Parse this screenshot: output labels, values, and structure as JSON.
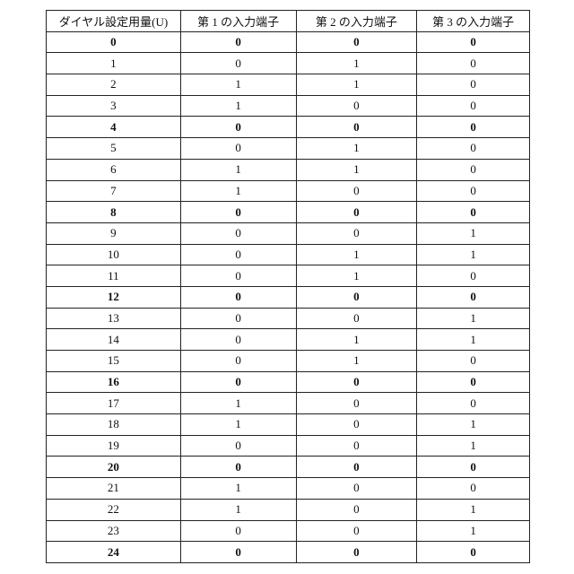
{
  "table": {
    "headers": [
      "ダイヤル設定用量(U)",
      "第 1 の入力端子",
      "第 2 の入力端子",
      "第 3 の入力端子"
    ],
    "rows": [
      {
        "cells": [
          "0",
          "0",
          "0",
          "0"
        ],
        "bold": true
      },
      {
        "cells": [
          "1",
          "0",
          "1",
          "0"
        ],
        "bold": false
      },
      {
        "cells": [
          "2",
          "1",
          "1",
          "0"
        ],
        "bold": false
      },
      {
        "cells": [
          "3",
          "1",
          "0",
          "0"
        ],
        "bold": false
      },
      {
        "cells": [
          "4",
          "0",
          "0",
          "0"
        ],
        "bold": true
      },
      {
        "cells": [
          "5",
          "0",
          "1",
          "0"
        ],
        "bold": false
      },
      {
        "cells": [
          "6",
          "1",
          "1",
          "0"
        ],
        "bold": false
      },
      {
        "cells": [
          "7",
          "1",
          "0",
          "0"
        ],
        "bold": false
      },
      {
        "cells": [
          "8",
          "0",
          "0",
          "0"
        ],
        "bold": true
      },
      {
        "cells": [
          "9",
          "0",
          "0",
          "1"
        ],
        "bold": false
      },
      {
        "cells": [
          "10",
          "0",
          "1",
          "1"
        ],
        "bold": false
      },
      {
        "cells": [
          "11",
          "0",
          "1",
          "0"
        ],
        "bold": false
      },
      {
        "cells": [
          "12",
          "0",
          "0",
          "0"
        ],
        "bold": true
      },
      {
        "cells": [
          "13",
          "0",
          "0",
          "1"
        ],
        "bold": false
      },
      {
        "cells": [
          "14",
          "0",
          "1",
          "1"
        ],
        "bold": false
      },
      {
        "cells": [
          "15",
          "0",
          "1",
          "0"
        ],
        "bold": false
      },
      {
        "cells": [
          "16",
          "0",
          "0",
          "0"
        ],
        "bold": true
      },
      {
        "cells": [
          "17",
          "1",
          "0",
          "0"
        ],
        "bold": false
      },
      {
        "cells": [
          "18",
          "1",
          "0",
          "1"
        ],
        "bold": false
      },
      {
        "cells": [
          "19",
          "0",
          "0",
          "1"
        ],
        "bold": false
      },
      {
        "cells": [
          "20",
          "0",
          "0",
          "0"
        ],
        "bold": true
      },
      {
        "cells": [
          "21",
          "1",
          "0",
          "0"
        ],
        "bold": false
      },
      {
        "cells": [
          "22",
          "1",
          "0",
          "1"
        ],
        "bold": false
      },
      {
        "cells": [
          "23",
          "0",
          "0",
          "1"
        ],
        "bold": false
      },
      {
        "cells": [
          "24",
          "0",
          "0",
          "0"
        ],
        "bold": true
      }
    ]
  }
}
